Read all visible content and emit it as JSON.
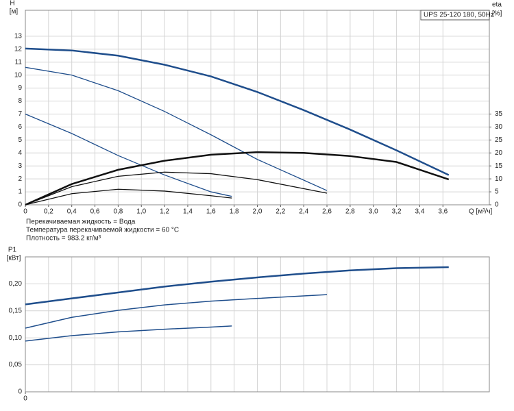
{
  "chart_data": [
    {
      "type": "line",
      "legend_box": "UPS 25-120 180, 50Hz",
      "ylabel": "H",
      "yunit": "[м]",
      "y2label": "eta",
      "y2unit": "[%]",
      "xlabel": "Q [м³/ч]",
      "notes": [
        "Перекачиваемая жидкость = Вода",
        "Температура перекачиваемой жидкости = 60 °C",
        "Плотность = 983.2 кг/м³"
      ],
      "xlim": [
        0,
        4
      ],
      "ylim": [
        0,
        15
      ],
      "y2lim": [
        0,
        75
      ],
      "grid": true,
      "xticks": [
        0,
        {
          "value": 0.2,
          "label": "0,2"
        },
        {
          "value": 0.4,
          "label": "0,4"
        },
        {
          "value": 0.6,
          "label": "0,6"
        },
        {
          "value": 0.8,
          "label": "0,8"
        },
        {
          "value": 1.0,
          "label": "1,0"
        },
        {
          "value": 1.2,
          "label": "1,2"
        },
        {
          "value": 1.4,
          "label": "1,4"
        },
        {
          "value": 1.6,
          "label": "1,6"
        },
        {
          "value": 1.8,
          "label": "1,8"
        },
        {
          "value": 2.0,
          "label": "2,0"
        },
        {
          "value": 2.2,
          "label": "2,2"
        },
        {
          "value": 2.4,
          "label": "2,4"
        },
        {
          "value": 2.6,
          "label": "2,6"
        },
        {
          "value": 2.8,
          "label": "2,8"
        },
        {
          "value": 3.0,
          "label": "3,0"
        },
        {
          "value": 3.2,
          "label": "3,2"
        },
        {
          "value": 3.4,
          "label": "3,4"
        },
        {
          "value": 3.6,
          "label": "3,6"
        }
      ],
      "yticks": [
        0,
        1,
        2,
        3,
        4,
        5,
        6,
        7,
        8,
        9,
        10,
        11,
        12,
        13
      ],
      "y2ticks": [
        0,
        5,
        10,
        15,
        20,
        25,
        30,
        35
      ],
      "series": [
        {
          "color": "#1f4e8c",
          "line_width": 2.5,
          "x": [
            0,
            0.4,
            0.8,
            1.2,
            1.6,
            2.0,
            2.4,
            2.8,
            3.2,
            3.65
          ],
          "values": [
            12.05,
            11.9,
            11.5,
            10.8,
            9.9,
            8.7,
            7.3,
            5.8,
            4.2,
            2.3
          ]
        },
        {
          "color": "#1f4e8c",
          "line_width": 1.3,
          "x": [
            0,
            0.4,
            0.8,
            1.2,
            1.6,
            2.0,
            2.4,
            2.6
          ],
          "values": [
            10.6,
            10.0,
            8.8,
            7.2,
            5.4,
            3.5,
            1.9,
            1.1
          ]
        },
        {
          "color": "#1f4e8c",
          "line_width": 1.3,
          "x": [
            0,
            0.4,
            0.8,
            1.2,
            1.6,
            1.78
          ],
          "values": [
            7.0,
            5.5,
            3.8,
            2.3,
            1.0,
            0.65
          ]
        },
        {
          "color": "#111111",
          "line_width": 2.5,
          "axis": "y2",
          "x": [
            0,
            0.4,
            0.8,
            1.2,
            1.6,
            2.0,
            2.4,
            2.8,
            3.2,
            3.65
          ],
          "values": [
            0,
            8,
            13.5,
            17,
            19.3,
            20.3,
            20,
            18.8,
            16.5,
            9.8
          ]
        },
        {
          "color": "#111111",
          "line_width": 1.3,
          "axis": "y2",
          "x": [
            0,
            0.4,
            0.8,
            1.2,
            1.6,
            2.0,
            2.6
          ],
          "values": [
            0,
            7,
            11,
            12.6,
            12,
            9.7,
            4.5
          ]
        },
        {
          "color": "#111111",
          "line_width": 1.3,
          "axis": "y2",
          "x": [
            0,
            0.4,
            0.8,
            1.2,
            1.6,
            1.78
          ],
          "values": [
            0,
            4.3,
            6.0,
            5.3,
            3.5,
            2.6
          ]
        }
      ]
    },
    {
      "type": "line",
      "ylabel": "P1",
      "yunit": "[кВт]",
      "xlim": [
        0,
        4
      ],
      "ylim": [
        0,
        0.25
      ],
      "grid": true,
      "xticks": [
        0
      ],
      "yticks": [
        0,
        {
          "value": 0.05,
          "label": "0,05"
        },
        {
          "value": 0.1,
          "label": "0,10"
        },
        {
          "value": 0.15,
          "label": "0,15"
        },
        {
          "value": 0.2,
          "label": "0,20"
        }
      ],
      "series": [
        {
          "color": "#1f4e8c",
          "line_width": 2.5,
          "x": [
            0,
            0.4,
            0.8,
            1.2,
            1.6,
            2.0,
            2.4,
            2.8,
            3.2,
            3.65
          ],
          "values": [
            0.162,
            0.173,
            0.184,
            0.195,
            0.204,
            0.212,
            0.219,
            0.225,
            0.229,
            0.231
          ]
        },
        {
          "color": "#1f4e8c",
          "line_width": 1.5,
          "x": [
            0,
            0.4,
            0.8,
            1.2,
            1.6,
            2.0,
            2.6
          ],
          "values": [
            0.118,
            0.138,
            0.151,
            0.161,
            0.168,
            0.173,
            0.18
          ]
        },
        {
          "color": "#1f4e8c",
          "line_width": 1.5,
          "x": [
            0,
            0.4,
            0.8,
            1.2,
            1.6,
            1.78
          ],
          "values": [
            0.094,
            0.104,
            0.111,
            0.116,
            0.12,
            0.122
          ]
        }
      ]
    }
  ]
}
